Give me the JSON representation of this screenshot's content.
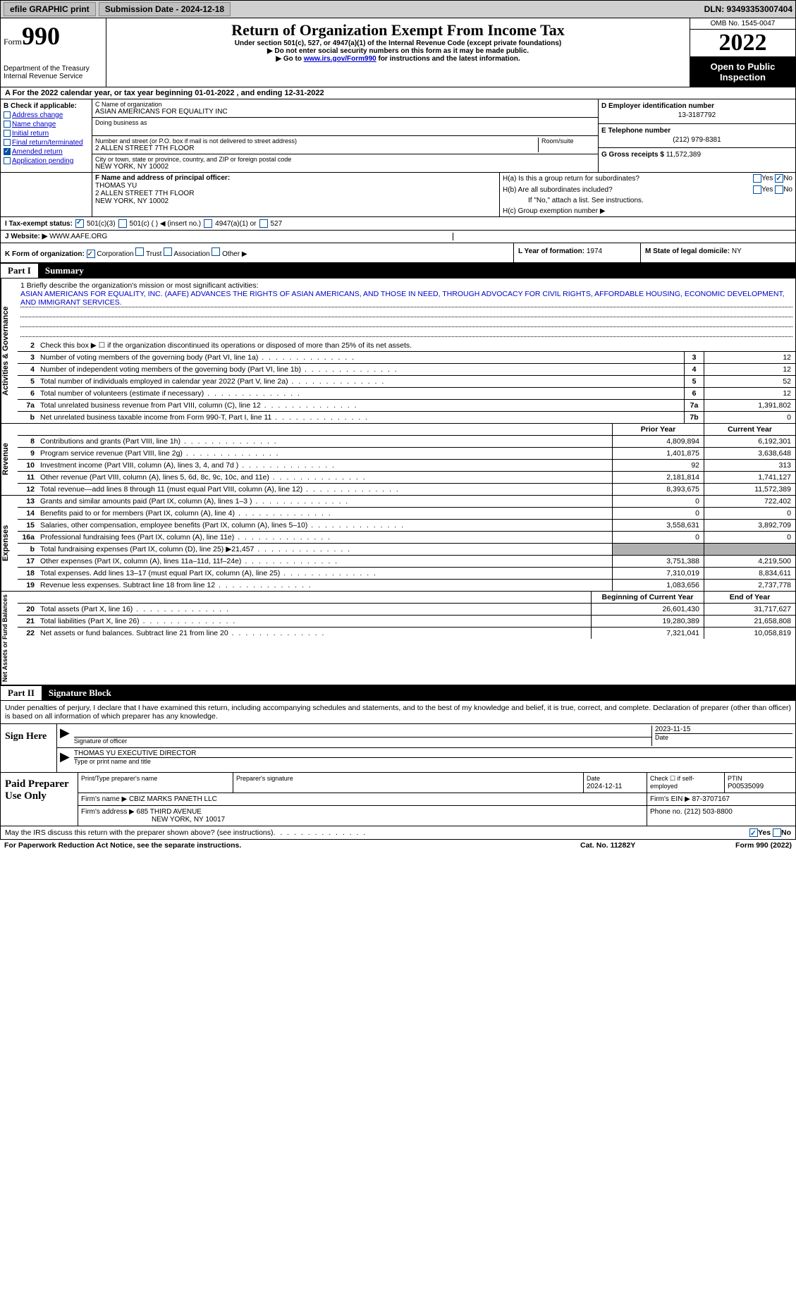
{
  "top": {
    "efile": "efile GRAPHIC print",
    "submission": "Submission Date - 2024-12-18",
    "dln": "DLN: 93493353007404"
  },
  "header": {
    "form_label": "Form",
    "form_number": "990",
    "dept": "Department of the Treasury",
    "irs": "Internal Revenue Service",
    "title": "Return of Organization Exempt From Income Tax",
    "sub": "Under section 501(c), 527, or 4947(a)(1) of the Internal Revenue Code (except private foundations)",
    "line1": "▶ Do not enter social security numbers on this form as it may be made public.",
    "line2_pre": "▶ Go to ",
    "line2_link": "www.irs.gov/Form990",
    "line2_post": " for instructions and the latest information.",
    "omb": "OMB No. 1545-0047",
    "year": "2022",
    "pub": "Open to Public Inspection"
  },
  "row_a": "A  For the 2022 calendar year, or tax year beginning 01-01-2022    , and ending 12-31-2022",
  "box_b": {
    "hdr": "B Check if applicable:",
    "items": [
      {
        "label": "Address change",
        "checked": false
      },
      {
        "label": "Name change",
        "checked": false
      },
      {
        "label": "Initial return",
        "checked": false
      },
      {
        "label": "Final return/terminated",
        "checked": false
      },
      {
        "label": "Amended return",
        "checked": true
      },
      {
        "label": "Application pending",
        "checked": false
      }
    ]
  },
  "box_c": {
    "name_lbl": "C Name of organization",
    "name": "ASIAN AMERICANS FOR EQUALITY INC",
    "dba_lbl": "Doing business as",
    "dba": "",
    "street_lbl": "Number and street (or P.O. box if mail is not delivered to street address)",
    "street": "2 ALLEN STREET 7TH FLOOR",
    "room_lbl": "Room/suite",
    "city_lbl": "City or town, state or province, country, and ZIP or foreign postal code",
    "city": "NEW YORK, NY  10002"
  },
  "box_d": {
    "ein_lbl": "D Employer identification number",
    "ein": "13-3187792",
    "tel_lbl": "E Telephone number",
    "tel": "(212) 979-8381",
    "gross_lbl": "G Gross receipts $",
    "gross": "11,572,389"
  },
  "box_f": {
    "lbl": "F Name and address of principal officer:",
    "name": "THOMAS YU",
    "addr1": "2 ALLEN STREET 7TH FLOOR",
    "addr2": "NEW YORK, NY  10002"
  },
  "box_h": {
    "ha": "H(a)  Is this a group return for subordinates?",
    "hb": "H(b)  Are all subordinates included?",
    "hb_note": "If \"No,\" attach a list. See instructions.",
    "hc": "H(c)  Group exemption number ▶"
  },
  "row_i": {
    "lbl": "I   Tax-exempt status:",
    "opt1": "501(c)(3)",
    "opt2": "501(c) (  ) ◀ (insert no.)",
    "opt3": "4947(a)(1) or",
    "opt4": "527"
  },
  "row_j": {
    "lbl": "J   Website: ▶",
    "val": "WWW.AAFE.ORG"
  },
  "row_k": {
    "k": "K Form of organization:",
    "k1": "Corporation",
    "k2": "Trust",
    "k3": "Association",
    "k4": "Other ▶",
    "l_lbl": "L Year of formation:",
    "l_val": "1974",
    "m_lbl": "M State of legal domicile:",
    "m_val": "NY"
  },
  "part1": {
    "num": "Part I",
    "title": "Summary"
  },
  "mission": {
    "lbl": "1   Briefly describe the organization's mission or most significant activities:",
    "text": "ASIAN AMERICANS FOR EQUALITY, INC. (AAFE) ADVANCES THE RIGHTS OF ASIAN AMERICANS, AND THOSE IN NEED, THROUGH ADVOCACY FOR CIVIL RIGHTS, AFFORDABLE HOUSING, ECONOMIC DEVELOPMENT, AND IMMIGRANT SERVICES."
  },
  "line2": "Check this box ▶ ☐ if the organization discontinued its operations or disposed of more than 25% of its net assets.",
  "vtabs": {
    "ag": "Activities & Governance",
    "rev": "Revenue",
    "exp": "Expenses",
    "net": "Net Assets or Fund Balances"
  },
  "rows_ag": [
    {
      "n": "3",
      "d": "Number of voting members of the governing body (Part VI, line 1a)",
      "bn": "3",
      "v": "12"
    },
    {
      "n": "4",
      "d": "Number of independent voting members of the governing body (Part VI, line 1b)",
      "bn": "4",
      "v": "12"
    },
    {
      "n": "5",
      "d": "Total number of individuals employed in calendar year 2022 (Part V, line 2a)",
      "bn": "5",
      "v": "52"
    },
    {
      "n": "6",
      "d": "Total number of volunteers (estimate if necessary)",
      "bn": "6",
      "v": "12"
    },
    {
      "n": "7a",
      "d": "Total unrelated business revenue from Part VIII, column (C), line 12",
      "bn": "7a",
      "v": "1,391,802"
    },
    {
      "n": "b",
      "d": "Net unrelated business taxable income from Form 990-T, Part I, line 11",
      "bn": "7b",
      "v": "0"
    }
  ],
  "hdr_py": "Prior Year",
  "hdr_cy": "Current Year",
  "rows_rev": [
    {
      "n": "8",
      "d": "Contributions and grants (Part VIII, line 1h)",
      "py": "4,809,894",
      "cy": "6,192,301"
    },
    {
      "n": "9",
      "d": "Program service revenue (Part VIII, line 2g)",
      "py": "1,401,875",
      "cy": "3,638,648"
    },
    {
      "n": "10",
      "d": "Investment income (Part VIII, column (A), lines 3, 4, and 7d )",
      "py": "92",
      "cy": "313"
    },
    {
      "n": "11",
      "d": "Other revenue (Part VIII, column (A), lines 5, 6d, 8c, 9c, 10c, and 11e)",
      "py": "2,181,814",
      "cy": "1,741,127"
    },
    {
      "n": "12",
      "d": "Total revenue—add lines 8 through 11 (must equal Part VIII, column (A), line 12)",
      "py": "8,393,675",
      "cy": "11,572,389"
    }
  ],
  "rows_exp": [
    {
      "n": "13",
      "d": "Grants and similar amounts paid (Part IX, column (A), lines 1–3 )",
      "py": "0",
      "cy": "722,402"
    },
    {
      "n": "14",
      "d": "Benefits paid to or for members (Part IX, column (A), line 4)",
      "py": "0",
      "cy": "0"
    },
    {
      "n": "15",
      "d": "Salaries, other compensation, employee benefits (Part IX, column (A), lines 5–10)",
      "py": "3,558,631",
      "cy": "3,892,709"
    },
    {
      "n": "16a",
      "d": "Professional fundraising fees (Part IX, column (A), line 11e)",
      "py": "0",
      "cy": "0"
    },
    {
      "n": "b",
      "d": "Total fundraising expenses (Part IX, column (D), line 25) ▶21,457",
      "py": "",
      "cy": "",
      "grey": true
    },
    {
      "n": "17",
      "d": "Other expenses (Part IX, column (A), lines 11a–11d, 11f–24e)",
      "py": "3,751,388",
      "cy": "4,219,500"
    },
    {
      "n": "18",
      "d": "Total expenses. Add lines 13–17 (must equal Part IX, column (A), line 25)",
      "py": "7,310,019",
      "cy": "8,834,611"
    },
    {
      "n": "19",
      "d": "Revenue less expenses. Subtract line 18 from line 12",
      "py": "1,083,656",
      "cy": "2,737,778"
    }
  ],
  "hdr_by": "Beginning of Current Year",
  "hdr_ey": "End of Year",
  "rows_net": [
    {
      "n": "20",
      "d": "Total assets (Part X, line 16)",
      "py": "26,601,430",
      "cy": "31,717,627"
    },
    {
      "n": "21",
      "d": "Total liabilities (Part X, line 26)",
      "py": "19,280,389",
      "cy": "21,658,808"
    },
    {
      "n": "22",
      "d": "Net assets or fund balances. Subtract line 21 from line 20",
      "py": "7,321,041",
      "cy": "10,058,819"
    }
  ],
  "part2": {
    "num": "Part II",
    "title": "Signature Block"
  },
  "sig_text": "Under penalties of perjury, I declare that I have examined this return, including accompanying schedules and statements, and to the best of my knowledge and belief, it is true, correct, and complete. Declaration of preparer (other than officer) is based on all information of which preparer has any knowledge.",
  "sign": {
    "here": "Sign Here",
    "sig_lbl": "Signature of officer",
    "date": "2023-11-15",
    "date_lbl": "Date",
    "name": "THOMAS YU  EXECUTIVE DIRECTOR",
    "name_lbl": "Type or print name and title"
  },
  "prep": {
    "hdr": "Paid Preparer Use Only",
    "name_lbl": "Print/Type preparer's name",
    "sig_lbl": "Preparer's signature",
    "date_lbl": "Date",
    "date": "2024-12-11",
    "self_lbl": "Check ☐ if self-employed",
    "ptin_lbl": "PTIN",
    "ptin": "P00535099",
    "firm_lbl": "Firm's name    ▶",
    "firm": "CBIZ MARKS PANETH LLC",
    "ein_lbl": "Firm's EIN ▶",
    "ein": "87-3707167",
    "addr_lbl": "Firm's address ▶",
    "addr1": "685 THIRD AVENUE",
    "addr2": "NEW YORK, NY  10017",
    "phone_lbl": "Phone no.",
    "phone": "(212) 503-8800"
  },
  "footer_q": "May the IRS discuss this return with the preparer shown above? (see instructions)",
  "bottom": {
    "l": "For Paperwork Reduction Act Notice, see the separate instructions.",
    "c": "Cat. No. 11282Y",
    "r": "Form 990 (2022)"
  }
}
